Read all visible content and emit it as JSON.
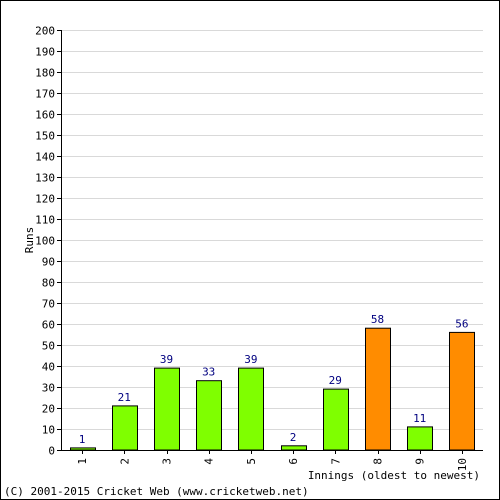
{
  "chart_data": {
    "type": "bar",
    "categories": [
      "1",
      "2",
      "3",
      "4",
      "5",
      "6",
      "7",
      "8",
      "9",
      "10"
    ],
    "values": [
      1,
      21,
      39,
      33,
      39,
      2,
      29,
      58,
      11,
      56
    ],
    "bar_colors": [
      "#7fff00",
      "#7fff00",
      "#7fff00",
      "#7fff00",
      "#7fff00",
      "#7fff00",
      "#7fff00",
      "#ff8c00",
      "#7fff00",
      "#ff8c00"
    ],
    "ylabel": "Runs",
    "xlabel": "Innings (oldest to newest)",
    "ylim": [
      0,
      200
    ],
    "y_tick_step": 10,
    "grid": true,
    "label_color": "#000080",
    "grid_color": "#d9d9d9"
  },
  "footer": {
    "copyright": "(C) 2001-2015 Cricket Web (www.cricketweb.net)"
  }
}
